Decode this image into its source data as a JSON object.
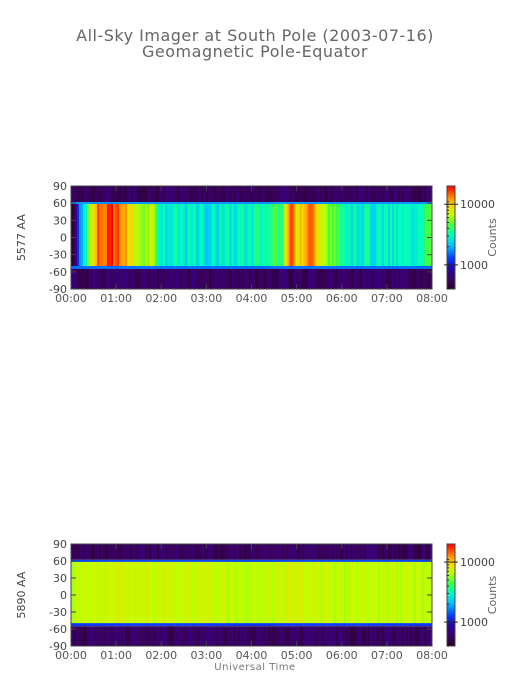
{
  "title": "All-Sky Imager at South Pole (2003-07-16)",
  "subtitle": "Geomagnetic Pole-Equator",
  "xlabel": "Universal Time",
  "chart_data": [
    {
      "type": "heatmap",
      "ylabel": "5577 AA",
      "x_ticks": [
        "00:00",
        "01:00",
        "02:00",
        "03:00",
        "04:00",
        "05:00",
        "06:00",
        "07:00",
        "08:00"
      ],
      "x_range_hours": [
        0,
        8
      ],
      "y_ticks": [
        90,
        60,
        30,
        0,
        -30,
        -60,
        -90
      ],
      "y_range": [
        -90,
        90
      ],
      "colorbar": {
        "label": "Counts",
        "ticks": [
          10000,
          1000
        ],
        "scale": "log",
        "range": [
          400,
          20000
        ]
      },
      "field_of_view": [
        -55,
        62
      ],
      "intensity_hourly": [
        {
          "t": 0.0,
          "v": 0
        },
        {
          "t": 0.45,
          "v": 0.75
        },
        {
          "t": 0.6,
          "v": 0.9
        },
        {
          "t": 0.9,
          "v": 0.95
        },
        {
          "t": 1.2,
          "v": 0.85
        },
        {
          "t": 1.5,
          "v": 0.7
        },
        {
          "t": 1.8,
          "v": 0.72
        },
        {
          "t": 2.0,
          "v": 0.5
        },
        {
          "t": 2.5,
          "v": 0.5
        },
        {
          "t": 3.0,
          "v": 0.48
        },
        {
          "t": 3.5,
          "v": 0.5
        },
        {
          "t": 4.0,
          "v": 0.52
        },
        {
          "t": 4.3,
          "v": 0.55
        },
        {
          "t": 4.7,
          "v": 0.6
        },
        {
          "t": 4.85,
          "v": 0.95
        },
        {
          "t": 5.0,
          "v": 0.8
        },
        {
          "t": 5.3,
          "v": 0.95
        },
        {
          "t": 5.6,
          "v": 0.7
        },
        {
          "t": 6.0,
          "v": 0.55
        },
        {
          "t": 6.5,
          "v": 0.5
        },
        {
          "t": 7.0,
          "v": 0.5
        },
        {
          "t": 7.5,
          "v": 0.5
        },
        {
          "t": 7.9,
          "v": 0.6
        },
        {
          "t": 8.0,
          "v": 0.6
        }
      ]
    },
    {
      "type": "heatmap",
      "ylabel": "5890 AA",
      "x_ticks": [
        "00:00",
        "01:00",
        "02:00",
        "03:00",
        "04:00",
        "05:00",
        "06:00",
        "07:00",
        "08:00"
      ],
      "x_range_hours": [
        0,
        8
      ],
      "y_ticks": [
        90,
        60,
        30,
        0,
        -30,
        -60,
        -90
      ],
      "y_range": [
        -90,
        90
      ],
      "colorbar": {
        "label": "Counts",
        "ticks": [
          10000,
          1000
        ],
        "scale": "log",
        "range": [
          400,
          20000
        ]
      },
      "field_of_view": [
        -55,
        62
      ],
      "intensity_hourly": [
        {
          "t": 0.0,
          "v": 0.72
        },
        {
          "t": 1.0,
          "v": 0.74
        },
        {
          "t": 2.0,
          "v": 0.74
        },
        {
          "t": 3.0,
          "v": 0.73
        },
        {
          "t": 4.0,
          "v": 0.72
        },
        {
          "t": 5.0,
          "v": 0.74
        },
        {
          "t": 6.0,
          "v": 0.72
        },
        {
          "t": 7.0,
          "v": 0.71
        },
        {
          "t": 8.0,
          "v": 0.72
        }
      ]
    }
  ]
}
